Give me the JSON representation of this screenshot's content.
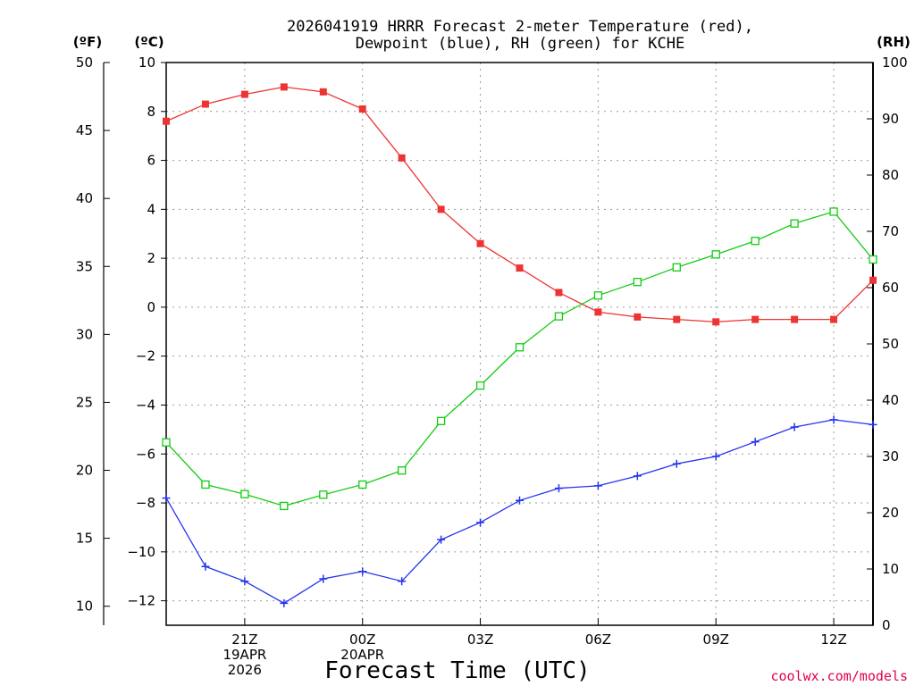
{
  "chart_data": {
    "type": "line",
    "title_lines": [
      "2026041919 HRRR Forecast 2-meter Temperature (red),",
      "Dewpoint (blue), RH (green) for KCHE"
    ],
    "unit_labels": {
      "fahrenheit": "(ºF)",
      "celsius": "(ºC)",
      "rh": "(RH)"
    },
    "xlabel": "Forecast Time (UTC)",
    "credit": "coolwx.com/models",
    "x_hours": [
      0,
      1,
      2,
      3,
      4,
      5,
      6,
      7,
      8,
      9,
      10,
      11,
      12,
      13,
      14,
      15,
      16,
      17,
      18
    ],
    "x_ticks": [
      {
        "hour": 2,
        "lines": [
          "21Z",
          "19APR",
          "2026"
        ]
      },
      {
        "hour": 5,
        "lines": [
          "00Z",
          "20APR"
        ]
      },
      {
        "hour": 8,
        "lines": [
          "03Z"
        ]
      },
      {
        "hour": 11,
        "lines": [
          "06Z"
        ]
      },
      {
        "hour": 14,
        "lines": [
          "09Z"
        ]
      },
      {
        "hour": 17,
        "lines": [
          "12Z"
        ]
      }
    ],
    "celsius_axis": {
      "range": [
        -13,
        10
      ],
      "ticks": [
        10,
        8,
        6,
        4,
        2,
        0,
        -2,
        -4,
        -6,
        -8,
        -10,
        -12
      ]
    },
    "fahrenheit_axis": {
      "ticks": [
        50,
        45,
        40,
        35,
        30,
        25,
        20,
        15,
        10
      ]
    },
    "rh_axis": {
      "range": [
        0,
        100
      ],
      "ticks": [
        100,
        90,
        80,
        70,
        60,
        50,
        40,
        30,
        20,
        10,
        0
      ]
    },
    "series": [
      {
        "name": "Temperature",
        "units": "C",
        "color": "#ee3333",
        "marker": "filled-square",
        "values": [
          7.6,
          8.3,
          8.7,
          9.0,
          8.8,
          8.1,
          6.1,
          4.0,
          2.6,
          1.6,
          0.6,
          -0.2,
          -0.4,
          -0.5,
          -0.6,
          -0.5,
          -0.5,
          -0.5,
          1.1
        ]
      },
      {
        "name": "Dewpoint",
        "units": "C",
        "color": "#2233ee",
        "marker": "plus",
        "values": [
          -7.8,
          -10.6,
          -11.2,
          -12.1,
          -11.1,
          -10.8,
          -11.2,
          -9.5,
          -8.8,
          -7.9,
          -7.4,
          -7.3,
          -6.9,
          -6.4,
          -6.1,
          -5.5,
          -4.9,
          -4.6,
          -4.8
        ]
      },
      {
        "name": "Relative Humidity",
        "units": "%",
        "color": "#11cc11",
        "marker": "open-square",
        "values": [
          32.5,
          25.0,
          23.3,
          21.2,
          23.2,
          25.0,
          27.5,
          36.3,
          42.6,
          49.4,
          54.9,
          58.6,
          61.0,
          63.6,
          65.9,
          68.3,
          71.4,
          73.5,
          65.0
        ]
      }
    ]
  }
}
